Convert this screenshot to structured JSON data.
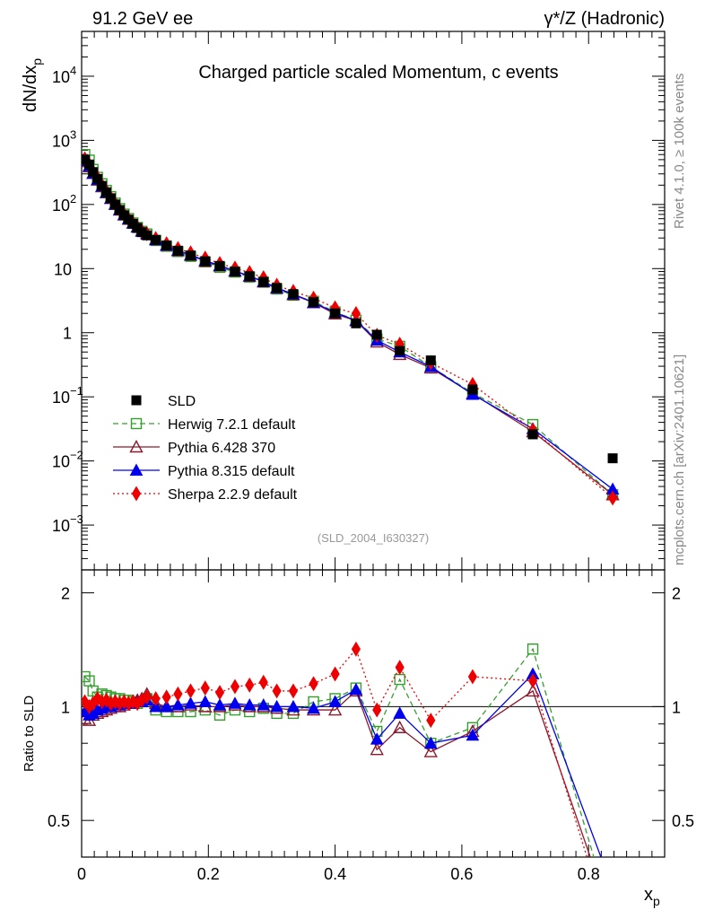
{
  "header": {
    "left": "91.2 GeV ee",
    "right_prefix": "γ*/Z",
    "right_suffix": "(Hadronic)"
  },
  "side": {
    "rivet": "Rivet 4.1.0, ≥ 100k events",
    "mcplots": "mcplots.cern.ch [arXiv:2401.10621]"
  },
  "chart_data": {
    "type": "scatter",
    "title": "Charged particle scaled Momentum, c events",
    "analysis": "(SLD_2004_I630327)",
    "ylabel_main": "dN/dx",
    "ylabel_main_sub": "p",
    "ylabel_ratio": "Ratio to SLD",
    "xlabel": "x",
    "xlabel_sub": "p",
    "xlim": [
      0,
      0.92
    ],
    "ylim_main": [
      0.0002,
      50000
    ],
    "ylim_ratio": [
      0.4,
      2.3
    ],
    "x_ticks": [
      "0",
      "0.2",
      "0.4",
      "0.6",
      "0.8"
    ],
    "y_ticks_main": [
      {
        "value": 0.001,
        "base": "10",
        "exp": "−3"
      },
      {
        "value": 0.01,
        "base": "10",
        "exp": "−2"
      },
      {
        "value": 0.1,
        "base": "10",
        "exp": "−1"
      },
      {
        "value": 1,
        "base": "1",
        "exp": ""
      },
      {
        "value": 10,
        "base": "10",
        "exp": ""
      },
      {
        "value": 100,
        "base": "10",
        "exp": "2"
      },
      {
        "value": 1000,
        "base": "10",
        "exp": "3"
      },
      {
        "value": 10000,
        "base": "10",
        "exp": "4"
      }
    ],
    "y_ticks_ratio": [
      "0.5",
      "1",
      "2"
    ],
    "x": [
      0.005,
      0.012,
      0.018,
      0.025,
      0.032,
      0.039,
      0.046,
      0.053,
      0.06,
      0.067,
      0.074,
      0.081,
      0.088,
      0.095,
      0.103,
      0.117,
      0.134,
      0.152,
      0.172,
      0.195,
      0.218,
      0.242,
      0.265,
      0.287,
      0.308,
      0.334,
      0.366,
      0.4,
      0.433,
      0.466,
      0.502,
      0.551,
      0.617,
      0.712,
      0.838
    ],
    "sld": [
      500,
      420,
      320,
      250,
      195,
      155,
      125,
      100,
      82,
      68,
      58,
      50,
      43,
      37,
      33,
      28,
      23,
      19,
      16,
      13,
      11,
      9.0,
      7.6,
      6.2,
      5.0,
      4.0,
      3.0,
      2.0,
      1.4,
      0.93,
      0.52,
      0.37,
      0.13,
      0.026,
      0.011
    ],
    "series": [
      {
        "name": "Herwig 7.2.1 default",
        "color": "#33a02c",
        "marker": "open-square",
        "dash": "6,4",
        "ratio": [
          1.2,
          1.17,
          1.1,
          1.06,
          1.08,
          1.07,
          1.06,
          1.05,
          1.05,
          1.04,
          1.04,
          1.03,
          1.02,
          1.03,
          1.05,
          0.98,
          0.97,
          0.97,
          0.97,
          0.98,
          0.95,
          0.98,
          0.97,
          0.99,
          0.96,
          0.96,
          1.03,
          1.05,
          1.12,
          0.86,
          1.18,
          0.8,
          0.88,
          1.42,
          0.27
        ]
      },
      {
        "name": "Pythia 6.428 370",
        "color": "#8b1a2e",
        "marker": "open-triangle",
        "dash": "",
        "ratio": [
          0.93,
          0.92,
          0.95,
          0.96,
          0.97,
          0.98,
          0.99,
          1.0,
          1.0,
          1.01,
          1.02,
          1.03,
          1.04,
          1.05,
          1.08,
          1.02,
          1.0,
          1.0,
          1.01,
          1.0,
          1.0,
          1.01,
          1.0,
          1.0,
          0.99,
          0.98,
          0.98,
          0.98,
          1.1,
          0.77,
          0.88,
          0.76,
          0.86,
          1.1,
          0.27
        ]
      },
      {
        "name": "Pythia 8.315 default",
        "color": "#0000ee",
        "marker": "filled-triangle",
        "dash": "",
        "ratio": [
          0.97,
          0.95,
          0.96,
          0.98,
          0.99,
          1.0,
          1.0,
          1.01,
          1.01,
          1.02,
          1.02,
          1.02,
          1.03,
          1.03,
          1.04,
          1.0,
          1.0,
          1.01,
          1.02,
          1.03,
          1.01,
          1.02,
          1.01,
          1.01,
          1.0,
          1.0,
          0.99,
          1.03,
          1.11,
          0.82,
          0.96,
          0.8,
          0.84,
          1.22,
          0.33
        ]
      },
      {
        "name": "Sherpa 2.2.9 default",
        "color": "#ee0000",
        "marker": "filled-diamond",
        "dash": "2,3",
        "ratio": [
          1.03,
          1.0,
          1.02,
          1.05,
          1.03,
          1.04,
          1.02,
          1.03,
          1.02,
          1.03,
          1.02,
          1.03,
          1.02,
          1.04,
          1.06,
          1.05,
          1.06,
          1.08,
          1.1,
          1.12,
          1.09,
          1.13,
          1.14,
          1.16,
          1.1,
          1.1,
          1.15,
          1.22,
          1.42,
          0.98,
          1.27,
          0.92,
          1.2,
          1.17,
          0.24
        ]
      }
    ],
    "legend": [
      "SLD",
      "Herwig 7.2.1 default",
      "Pythia 6.428 370",
      "Pythia 8.315 default",
      "Sherpa 2.2.9 default"
    ],
    "legend_position": "lower-left"
  }
}
